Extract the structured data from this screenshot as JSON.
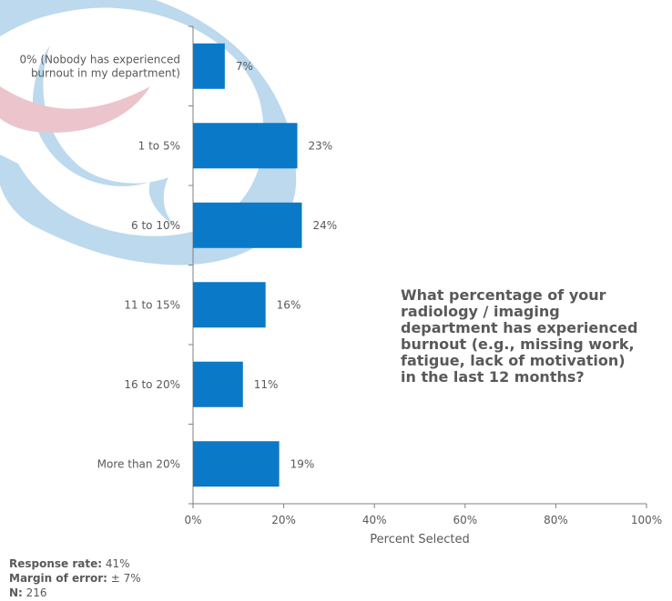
{
  "chart_data": {
    "type": "bar",
    "orientation": "horizontal",
    "categories": [
      "0% (Nobody has experienced burnout in my department)",
      "1 to 5%",
      "6 to 10%",
      "11 to 15%",
      "16 to 20%",
      "More than 20%"
    ],
    "category_lines": [
      [
        "0% (Nobody has experienced",
        "burnout in my department)"
      ],
      [
        "1 to 5%"
      ],
      [
        "6 to 10%"
      ],
      [
        "11 to 15%"
      ],
      [
        "16 to 20%"
      ],
      [
        "More than 20%"
      ]
    ],
    "values": [
      7,
      23,
      24,
      16,
      11,
      19
    ],
    "value_labels": [
      "7%",
      "23%",
      "24%",
      "16%",
      "11%",
      "19%"
    ],
    "xlabel": "Percent Selected",
    "ylabel": "",
    "xlim": [
      0,
      100
    ],
    "xticks": [
      0,
      20,
      40,
      60,
      80,
      100
    ],
    "xtick_labels": [
      "0%",
      "20%",
      "40%",
      "60%",
      "80%",
      "100%"
    ],
    "grid": false,
    "legend": "none",
    "bar_color": "#0a79c7",
    "title": "What percentage of your radiology / imaging department has experienced burnout (e.g., missing work, fatigue, lack of motivation) in the last 12 months?"
  },
  "question_lines": [
    "What percentage of your",
    "radiology  / imaging",
    "department has experienced",
    "burnout (e.g., missing  work,",
    "fatigue, lack of motivation)",
    "in the last 12 months?"
  ],
  "footer": {
    "response_rate_label": "Response rate:",
    "response_rate_value": " 41%",
    "margin_label": "Margin  of error:",
    "margin_value": " ± 7%",
    "n_label": "N:",
    "n_value": " 216"
  },
  "colors": {
    "watermark_blue": "#bcd9ee",
    "watermark_pink": "#ecc4cc",
    "axis": "#808080",
    "text": "#595959"
  }
}
